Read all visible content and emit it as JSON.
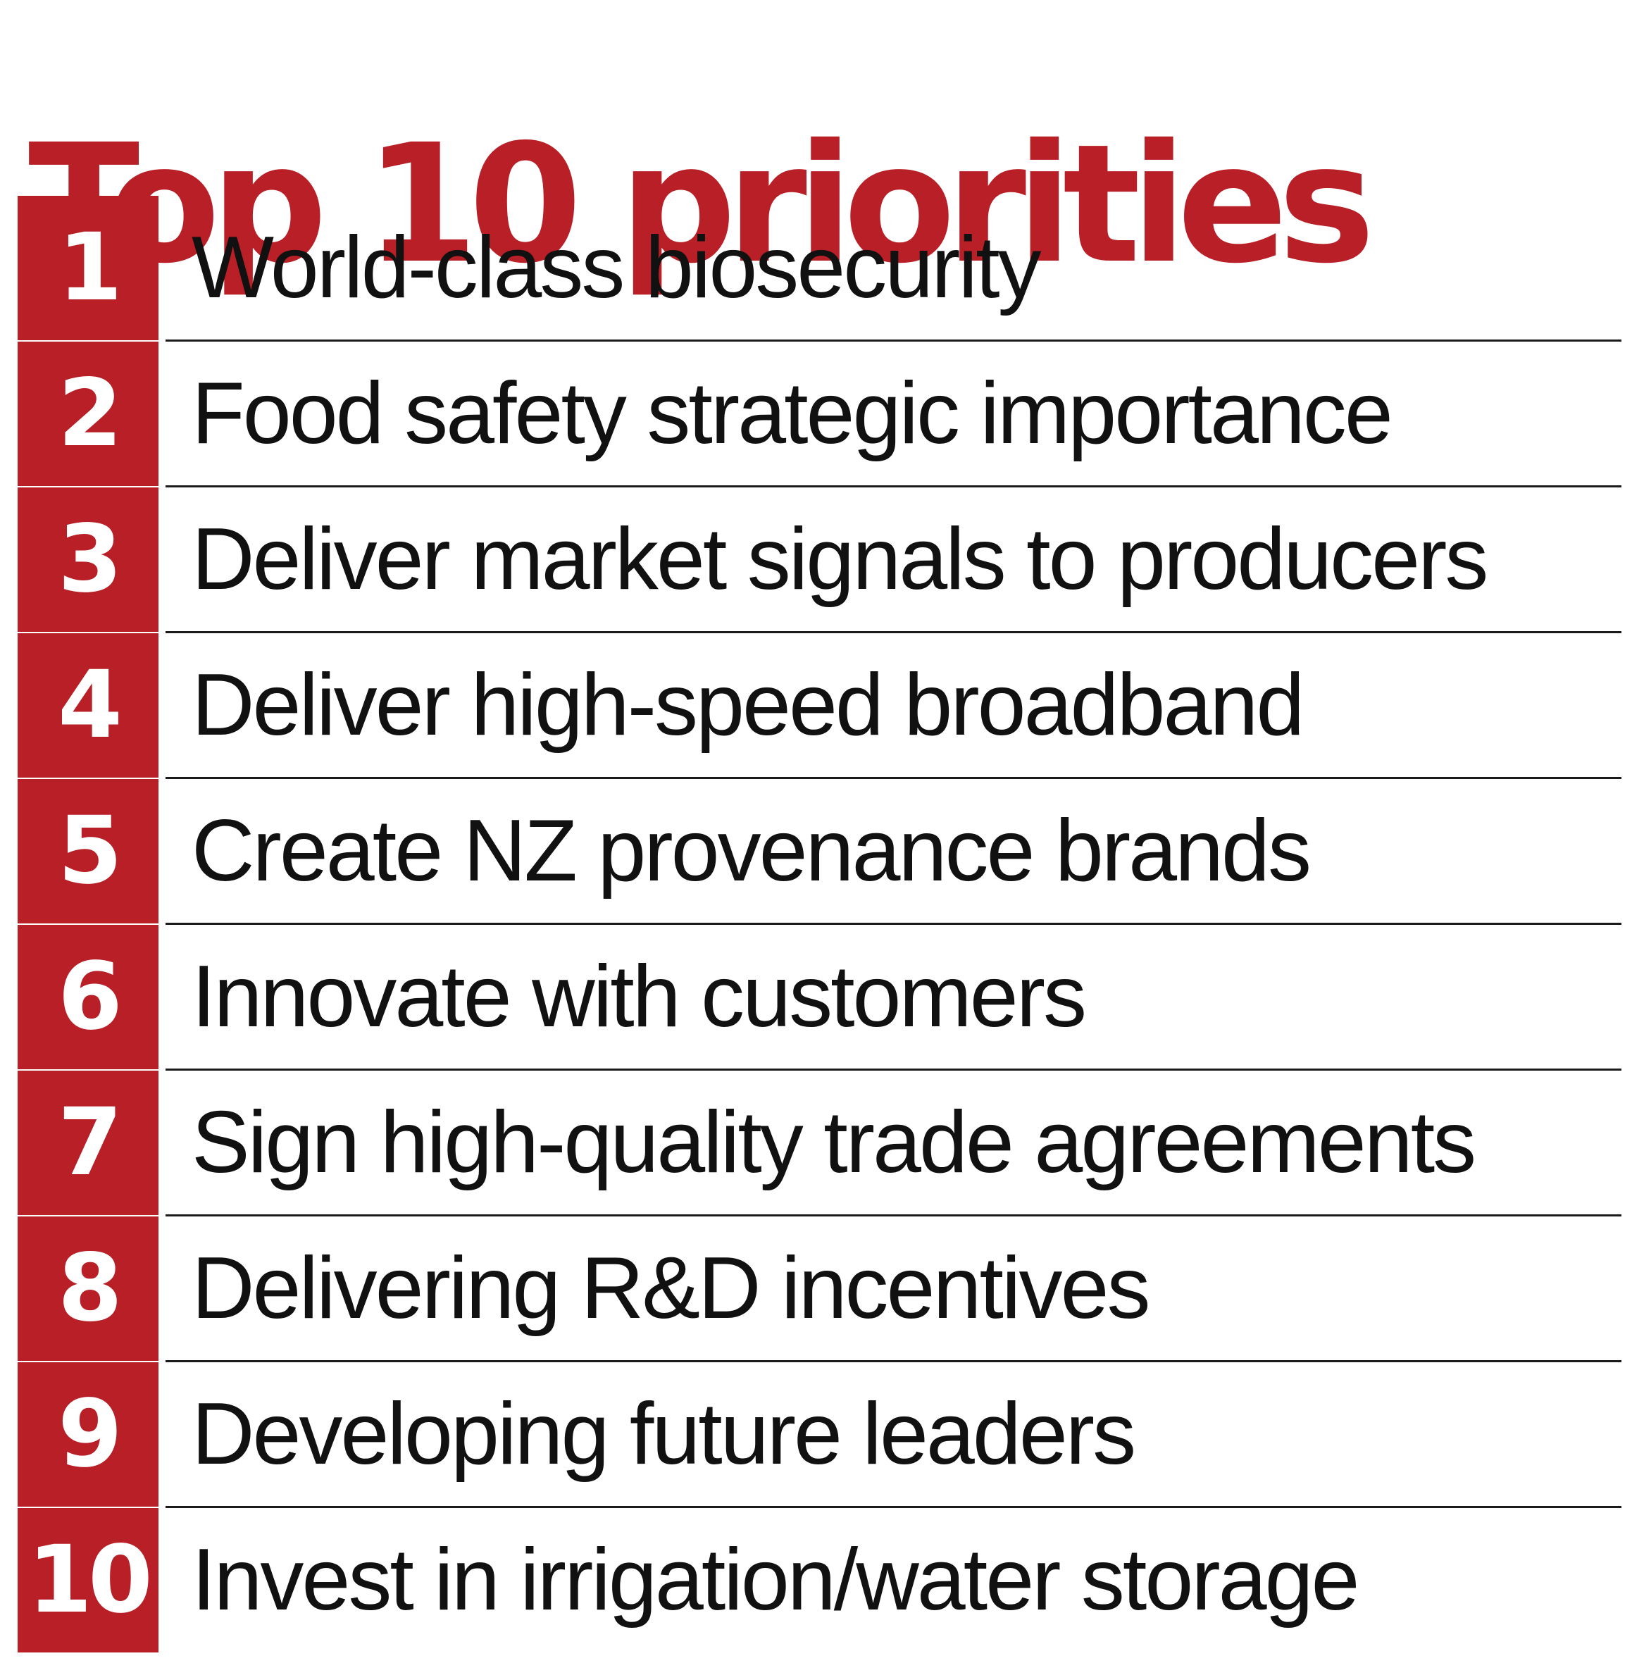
{
  "title": "Top 10 priorities",
  "colors": {
    "accent": "#b91f26",
    "text": "#111111",
    "rule": "#1a1a1a"
  },
  "priorities": [
    {
      "rank": "1",
      "text": "World-class biosecurity"
    },
    {
      "rank": "2",
      "text": "Food safety strategic importance"
    },
    {
      "rank": "3",
      "text": "Deliver market signals to producers"
    },
    {
      "rank": "4",
      "text": "Deliver high-speed broadband"
    },
    {
      "rank": "5",
      "text": "Create NZ provenance brands"
    },
    {
      "rank": "6",
      "text": "Innovate with customers"
    },
    {
      "rank": "7",
      "text": "Sign high-quality trade agreements"
    },
    {
      "rank": "8",
      "text": "Delivering R&D incentives"
    },
    {
      "rank": "9",
      "text": "Developing future leaders"
    },
    {
      "rank": "10",
      "text": "Invest in irrigation/water storage"
    }
  ]
}
